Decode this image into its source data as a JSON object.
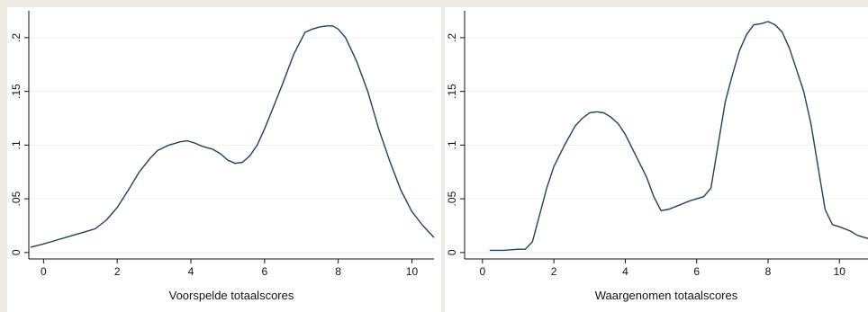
{
  "chart_data": [
    {
      "type": "line",
      "title": "",
      "xlabel": "Voorspelde totaalscores",
      "ylabel": "",
      "xlim": [
        -0.4,
        10.6
      ],
      "ylim": [
        -0.006,
        0.22
      ],
      "xticks": [
        0,
        2,
        4,
        6,
        8,
        10
      ],
      "xtick_labels": [
        "0",
        "2",
        "4",
        "6",
        "8",
        "10"
      ],
      "yticks": [
        0,
        0.05,
        0.1,
        0.15,
        0.2
      ],
      "ytick_labels": [
        "0",
        ".05",
        ".1",
        ".15",
        ".2"
      ],
      "grid": true,
      "line_color": "#1f3f66",
      "x": [
        -0.35,
        0,
        0.4,
        0.8,
        1.2,
        1.4,
        1.7,
        2.0,
        2.3,
        2.6,
        2.9,
        3.1,
        3.4,
        3.7,
        3.9,
        4.1,
        4.3,
        4.6,
        4.8,
        5.0,
        5.2,
        5.4,
        5.6,
        5.8,
        6.0,
        6.2,
        6.5,
        6.8,
        7.1,
        7.3,
        7.5,
        7.7,
        7.85,
        8.0,
        8.2,
        8.5,
        8.8,
        9.1,
        9.4,
        9.7,
        10.0,
        10.3,
        10.6
      ],
      "y": [
        0.005,
        0.008,
        0.012,
        0.016,
        0.02,
        0.022,
        0.03,
        0.042,
        0.058,
        0.075,
        0.088,
        0.095,
        0.1,
        0.103,
        0.104,
        0.102,
        0.099,
        0.096,
        0.092,
        0.086,
        0.083,
        0.084,
        0.09,
        0.1,
        0.115,
        0.132,
        0.158,
        0.185,
        0.205,
        0.208,
        0.21,
        0.211,
        0.211,
        0.208,
        0.2,
        0.178,
        0.15,
        0.115,
        0.085,
        0.058,
        0.038,
        0.025,
        0.014
      ]
    },
    {
      "type": "line",
      "title": "",
      "xlabel": "Waargenomen totaalscores",
      "ylabel": "",
      "xlim": [
        -0.5,
        10.8
      ],
      "ylim": [
        -0.006,
        0.22
      ],
      "xticks": [
        0,
        2,
        4,
        6,
        8,
        10
      ],
      "xtick_labels": [
        "0",
        "2",
        "4",
        "6",
        "8",
        "10"
      ],
      "yticks": [
        0,
        0.05,
        0.1,
        0.15,
        0.2
      ],
      "ytick_labels": [
        "0",
        ".05",
        ".1",
        ".15",
        ".2"
      ],
      "grid": true,
      "line_color": "#1f3f66",
      "x": [
        0.2,
        0.6,
        1.0,
        1.2,
        1.4,
        1.6,
        1.8,
        2.0,
        2.3,
        2.6,
        2.8,
        3.0,
        3.2,
        3.4,
        3.6,
        3.8,
        4.0,
        4.3,
        4.6,
        4.8,
        5.0,
        5.2,
        5.5,
        5.8,
        6.0,
        6.2,
        6.4,
        6.6,
        6.8,
        7.0,
        7.2,
        7.4,
        7.6,
        7.8,
        8.0,
        8.2,
        8.4,
        8.6,
        8.8,
        9.0,
        9.2,
        9.4,
        9.6,
        9.8,
        10.0,
        10.3,
        10.5,
        10.8
      ],
      "y": [
        0.002,
        0.002,
        0.003,
        0.003,
        0.01,
        0.035,
        0.06,
        0.08,
        0.1,
        0.118,
        0.125,
        0.13,
        0.131,
        0.13,
        0.126,
        0.12,
        0.11,
        0.09,
        0.07,
        0.052,
        0.039,
        0.04,
        0.044,
        0.048,
        0.05,
        0.052,
        0.06,
        0.1,
        0.14,
        0.165,
        0.188,
        0.203,
        0.212,
        0.213,
        0.215,
        0.212,
        0.205,
        0.19,
        0.17,
        0.15,
        0.12,
        0.08,
        0.04,
        0.026,
        0.024,
        0.02,
        0.016,
        0.013
      ]
    }
  ]
}
